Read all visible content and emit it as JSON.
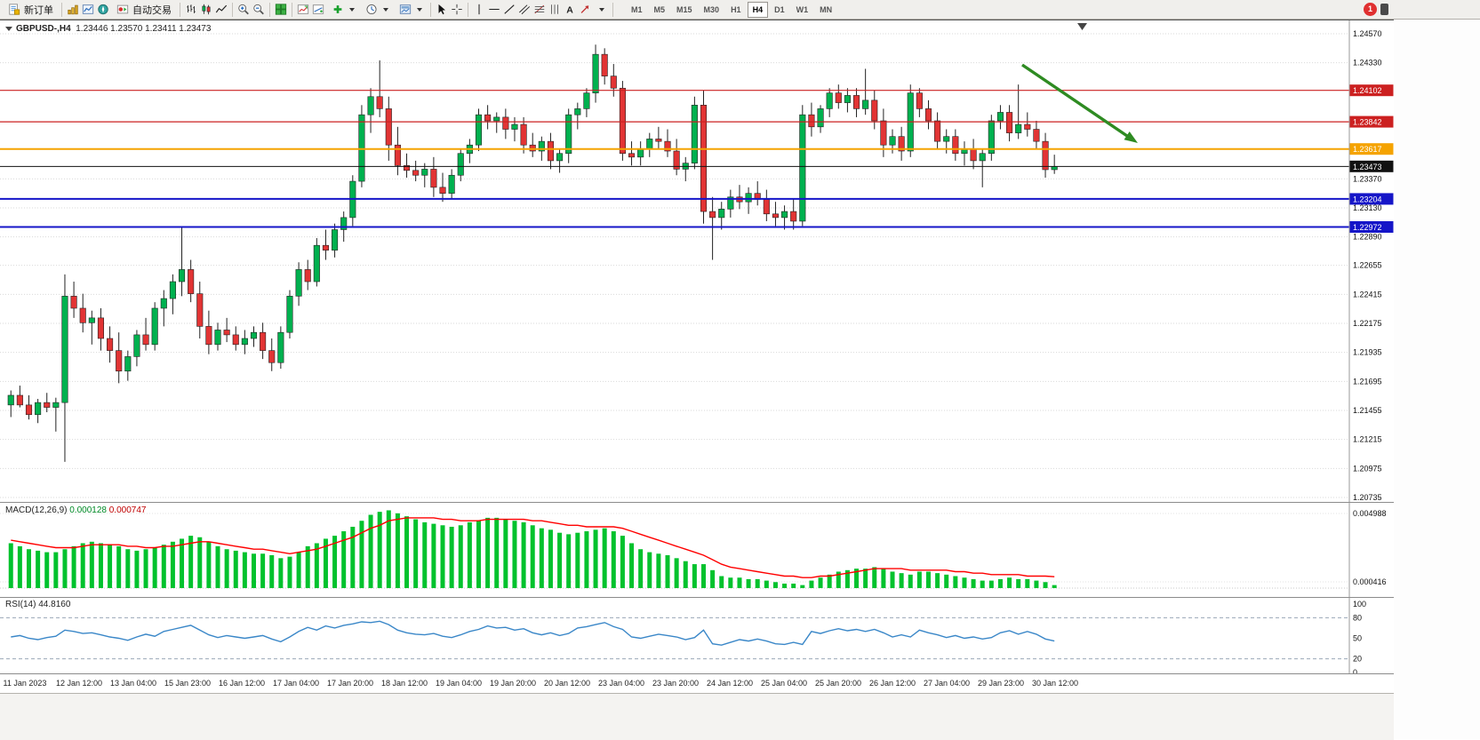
{
  "toolbar": {
    "new_order_label": "新订单",
    "autotrading_label": "自动交易",
    "timeframes": [
      "M1",
      "M5",
      "M15",
      "M30",
      "H1",
      "H4",
      "D1",
      "W1",
      "MN"
    ],
    "active_timeframe": "H4",
    "notification_count": "1"
  },
  "icons": {
    "text_glyph": "A"
  },
  "chart": {
    "header": {
      "symbol": "GBPUSD-,H4",
      "ohlc": "1.23446 1.23570 1.23411 1.23473"
    },
    "colors": {
      "up": "#00b14f",
      "down": "#e23434",
      "wick": "#222222",
      "arrow": "#2e8b22",
      "macd_hist": "#00c22d",
      "macd_signal": "#ff0000",
      "rsi_line": "#3a87c8"
    },
    "price_axis": {
      "ticks": [
        "1.24570",
        "1.24330",
        "1.23370",
        "1.23130",
        "1.22890",
        "1.22655",
        "1.22415",
        "1.22175",
        "1.21935",
        "1.21695",
        "1.21455",
        "1.21215",
        "1.20975",
        "1.20735"
      ]
    },
    "levels": [
      {
        "price": "1.24102",
        "color": "#cc2020",
        "width": 1.2
      },
      {
        "price": "1.23842",
        "color": "#cc2020",
        "width": 1.2
      },
      {
        "price": "1.23617",
        "color": "#f5a300",
        "width": 2
      },
      {
        "price": "1.23473",
        "color": "#111111",
        "width": 1
      },
      {
        "price": "1.23204",
        "color": "#1515c8",
        "width": 2
      },
      {
        "price": "1.22972",
        "color": "#1515c8",
        "width": 2
      }
    ],
    "time_axis": [
      "11 Jan 2023",
      "12 Jan 12:00",
      "13 Jan 04:00",
      "15 Jan 23:00",
      "16 Jan 12:00",
      "17 Jan 04:00",
      "17 Jan 20:00",
      "18 Jan 12:00",
      "19 Jan 04:00",
      "19 Jan 20:00",
      "20 Jan 12:00",
      "23 Jan 04:00",
      "23 Jan 20:00",
      "24 Jan 12:00",
      "25 Jan 04:00",
      "25 Jan 20:00",
      "26 Jan 12:00",
      "27 Jan 04:00",
      "29 Jan 23:00",
      "30 Jan 12:00"
    ]
  },
  "macd": {
    "label": "MACD(12,26,9)",
    "value_main": "0.000128",
    "value_signal": "0.000747",
    "scale_labels": [
      "0.004988",
      "0.000416"
    ]
  },
  "rsi": {
    "label": "RSI(14)",
    "value": "44.8160",
    "scale_labels": [
      "100",
      "80",
      "50",
      "20",
      "0"
    ],
    "scale_values": [
      100,
      80,
      50,
      20,
      0
    ],
    "level_values": [
      80,
      20
    ]
  },
  "chart_data": {
    "type": "candlestick",
    "symbol": "GBPUSD-",
    "timeframe": "H4",
    "candles": [
      [
        1.215,
        1.2162,
        1.214,
        1.2158
      ],
      [
        1.2158,
        1.2166,
        1.2148,
        1.215
      ],
      [
        1.215,
        1.2158,
        1.2138,
        1.2142
      ],
      [
        1.2142,
        1.2155,
        1.2135,
        1.2152
      ],
      [
        1.2152,
        1.216,
        1.2144,
        1.2148
      ],
      [
        1.2148,
        1.2156,
        1.2128,
        1.2152
      ],
      [
        1.2152,
        1.2258,
        1.2103,
        1.224
      ],
      [
        1.224,
        1.2252,
        1.2222,
        1.223
      ],
      [
        1.223,
        1.2242,
        1.221,
        1.2218
      ],
      [
        1.2218,
        1.2228,
        1.22,
        1.2222
      ],
      [
        1.2222,
        1.223,
        1.2195,
        1.2205
      ],
      [
        1.2205,
        1.2215,
        1.2185,
        1.2195
      ],
      [
        1.2195,
        1.221,
        1.2168,
        1.2178
      ],
      [
        1.2178,
        1.2195,
        1.217,
        1.219
      ],
      [
        1.219,
        1.2212,
        1.2182,
        1.2208
      ],
      [
        1.2208,
        1.2222,
        1.2195,
        1.22
      ],
      [
        1.22,
        1.2235,
        1.2195,
        1.223
      ],
      [
        1.223,
        1.2245,
        1.2215,
        1.2238
      ],
      [
        1.2238,
        1.2258,
        1.2225,
        1.2252
      ],
      [
        1.2252,
        1.2297,
        1.224,
        1.2262
      ],
      [
        1.2262,
        1.227,
        1.2235,
        1.2242
      ],
      [
        1.2242,
        1.2252,
        1.2205,
        1.2215
      ],
      [
        1.2215,
        1.2228,
        1.2192,
        1.22
      ],
      [
        1.22,
        1.2218,
        1.2195,
        1.2212
      ],
      [
        1.2212,
        1.2222,
        1.2202,
        1.2208
      ],
      [
        1.2208,
        1.2215,
        1.2195,
        1.22
      ],
      [
        1.22,
        1.2212,
        1.2192,
        1.2205
      ],
      [
        1.2205,
        1.2215,
        1.2198,
        1.221
      ],
      [
        1.221,
        1.2218,
        1.2188,
        1.2195
      ],
      [
        1.2195,
        1.2205,
        1.2178,
        1.2185
      ],
      [
        1.2185,
        1.2215,
        1.218,
        1.221
      ],
      [
        1.221,
        1.2245,
        1.2205,
        1.224
      ],
      [
        1.224,
        1.2268,
        1.2232,
        1.2262
      ],
      [
        1.2262,
        1.227,
        1.2245,
        1.2252
      ],
      [
        1.2252,
        1.2288,
        1.2248,
        1.2282
      ],
      [
        1.2282,
        1.2295,
        1.227,
        1.2278
      ],
      [
        1.2278,
        1.23,
        1.2272,
        1.2295
      ],
      [
        1.2295,
        1.231,
        1.2285,
        1.2305
      ],
      [
        1.2305,
        1.234,
        1.2298,
        1.2335
      ],
      [
        1.2335,
        1.2398,
        1.233,
        1.239
      ],
      [
        1.239,
        1.2412,
        1.2375,
        1.2405
      ],
      [
        1.2405,
        1.2435,
        1.2388,
        1.2395
      ],
      [
        1.2395,
        1.2405,
        1.2352,
        1.2365
      ],
      [
        1.2365,
        1.238,
        1.234,
        1.2348
      ],
      [
        1.2348,
        1.2358,
        1.2338,
        1.2344
      ],
      [
        1.2344,
        1.2352,
        1.2335,
        1.234
      ],
      [
        1.234,
        1.235,
        1.233,
        1.2345
      ],
      [
        1.2345,
        1.2355,
        1.2322,
        1.233
      ],
      [
        1.233,
        1.2342,
        1.2318,
        1.2325
      ],
      [
        1.2325,
        1.2345,
        1.232,
        1.234
      ],
      [
        1.234,
        1.2362,
        1.2335,
        1.2358
      ],
      [
        1.2358,
        1.237,
        1.235,
        1.2365
      ],
      [
        1.2365,
        1.2395,
        1.236,
        1.239
      ],
      [
        1.239,
        1.2398,
        1.2378,
        1.2385
      ],
      [
        1.2385,
        1.2392,
        1.2375,
        1.2388
      ],
      [
        1.2388,
        1.2395,
        1.237,
        1.2378
      ],
      [
        1.2378,
        1.2388,
        1.2368,
        1.2382
      ],
      [
        1.2382,
        1.2388,
        1.2358,
        1.2365
      ],
      [
        1.2365,
        1.2375,
        1.2355,
        1.236
      ],
      [
        1.236,
        1.2372,
        1.2352,
        1.2368
      ],
      [
        1.2368,
        1.2375,
        1.2345,
        1.2352
      ],
      [
        1.2352,
        1.2362,
        1.2342,
        1.2358
      ],
      [
        1.2358,
        1.2395,
        1.235,
        1.239
      ],
      [
        1.239,
        1.24,
        1.2378,
        1.2395
      ],
      [
        1.2395,
        1.2412,
        1.2388,
        1.2408
      ],
      [
        1.2408,
        1.2448,
        1.24,
        1.244
      ],
      [
        1.244,
        1.2445,
        1.2415,
        1.2422
      ],
      [
        1.2422,
        1.2432,
        1.2405,
        1.2412
      ],
      [
        1.2412,
        1.2418,
        1.2352,
        1.2358
      ],
      [
        1.2358,
        1.2368,
        1.2348,
        1.2355
      ],
      [
        1.2355,
        1.2368,
        1.2348,
        1.2362
      ],
      [
        1.2362,
        1.2375,
        1.2355,
        1.237
      ],
      [
        1.237,
        1.238,
        1.2362,
        1.2368
      ],
      [
        1.2368,
        1.2378,
        1.2355,
        1.236
      ],
      [
        1.236,
        1.237,
        1.234,
        1.2345
      ],
      [
        1.2345,
        1.2355,
        1.2335,
        1.235
      ],
      [
        1.235,
        1.2405,
        1.2345,
        1.2398
      ],
      [
        1.2398,
        1.241,
        1.23,
        1.231
      ],
      [
        1.231,
        1.2322,
        1.227,
        1.2305
      ],
      [
        1.2305,
        1.2318,
        1.2295,
        1.2312
      ],
      [
        1.2312,
        1.2328,
        1.2305,
        1.2322
      ],
      [
        1.2322,
        1.2332,
        1.2312,
        1.2318
      ],
      [
        1.2318,
        1.233,
        1.2308,
        1.2325
      ],
      [
        1.2325,
        1.2335,
        1.2315,
        1.232
      ],
      [
        1.232,
        1.2328,
        1.2302,
        1.2308
      ],
      [
        1.2308,
        1.2318,
        1.2298,
        1.2305
      ],
      [
        1.2305,
        1.2315,
        1.2295,
        1.231
      ],
      [
        1.231,
        1.232,
        1.2295,
        1.2302
      ],
      [
        1.2302,
        1.2398,
        1.2298,
        1.239
      ],
      [
        1.239,
        1.24,
        1.2372,
        1.238
      ],
      [
        1.238,
        1.2398,
        1.2375,
        1.2395
      ],
      [
        1.2395,
        1.2412,
        1.2388,
        1.2408
      ],
      [
        1.2408,
        1.2415,
        1.2395,
        1.24
      ],
      [
        1.24,
        1.2412,
        1.2392,
        1.2406
      ],
      [
        1.2406,
        1.2412,
        1.2388,
        1.2395
      ],
      [
        1.2395,
        1.2428,
        1.239,
        1.2402
      ],
      [
        1.2402,
        1.241,
        1.2378,
        1.2385
      ],
      [
        1.2385,
        1.2395,
        1.2355,
        1.2365
      ],
      [
        1.2365,
        1.2378,
        1.2358,
        1.2372
      ],
      [
        1.2372,
        1.238,
        1.2352,
        1.236
      ],
      [
        1.236,
        1.2415,
        1.2355,
        1.2408
      ],
      [
        1.2408,
        1.2412,
        1.2388,
        1.2395
      ],
      [
        1.2395,
        1.2402,
        1.2378,
        1.2385
      ],
      [
        1.2385,
        1.2392,
        1.2362,
        1.2368
      ],
      [
        1.2368,
        1.2378,
        1.2358,
        1.2372
      ],
      [
        1.2372,
        1.2378,
        1.2352,
        1.2358
      ],
      [
        1.2358,
        1.2368,
        1.2348,
        1.2362
      ],
      [
        1.2362,
        1.237,
        1.2345,
        1.2352
      ],
      [
        1.2352,
        1.2362,
        1.233,
        1.2358
      ],
      [
        1.2358,
        1.239,
        1.2352,
        1.2385
      ],
      [
        1.2385,
        1.2398,
        1.2378,
        1.2392
      ],
      [
        1.2392,
        1.2398,
        1.2368,
        1.2375
      ],
      [
        1.2375,
        1.2415,
        1.237,
        1.2382
      ],
      [
        1.2382,
        1.2392,
        1.2372,
        1.2378
      ],
      [
        1.2378,
        1.2385,
        1.2362,
        1.2368
      ],
      [
        1.2368,
        1.2375,
        1.2338,
        1.23446
      ],
      [
        1.23446,
        1.2357,
        1.23411,
        1.23473
      ]
    ],
    "macd_histogram": [
      0.003,
      0.0028,
      0.0026,
      0.0025,
      0.0024,
      0.0024,
      0.0026,
      0.0028,
      0.003,
      0.0031,
      0.003,
      0.0029,
      0.0028,
      0.0026,
      0.0025,
      0.0026,
      0.0027,
      0.0029,
      0.0031,
      0.0033,
      0.0035,
      0.0034,
      0.0031,
      0.0028,
      0.0026,
      0.0025,
      0.0024,
      0.0023,
      0.0023,
      0.0022,
      0.002,
      0.0021,
      0.0024,
      0.0028,
      0.003,
      0.0033,
      0.0035,
      0.0038,
      0.0041,
      0.0045,
      0.0049,
      0.0051,
      0.0052,
      0.005,
      0.0048,
      0.0046,
      0.0044,
      0.0043,
      0.0042,
      0.0041,
      0.0042,
      0.0044,
      0.0045,
      0.0047,
      0.0047,
      0.0046,
      0.0045,
      0.0044,
      0.0042,
      0.004,
      0.0039,
      0.0037,
      0.0036,
      0.0037,
      0.0038,
      0.0039,
      0.004,
      0.0038,
      0.0035,
      0.003,
      0.0026,
      0.0024,
      0.0023,
      0.0022,
      0.002,
      0.0018,
      0.0016,
      0.0016,
      0.0012,
      0.0008,
      0.0007,
      0.0007,
      0.0006,
      0.0006,
      0.0005,
      0.0004,
      0.0003,
      0.0003,
      0.0002,
      0.0005,
      0.0007,
      0.0009,
      0.0011,
      0.0012,
      0.0013,
      0.0013,
      0.0014,
      0.0013,
      0.0011,
      0.001,
      0.0009,
      0.0011,
      0.0011,
      0.001,
      0.0009,
      0.0008,
      0.0007,
      0.0006,
      0.0005,
      0.0005,
      0.0006,
      0.0007,
      0.0006,
      0.0006,
      0.0005,
      0.0004,
      0.0002,
      0.00013
    ],
    "macd_signal": [
      0.0032,
      0.0031,
      0.003,
      0.0029,
      0.0028,
      0.0027,
      0.0027,
      0.0027,
      0.0028,
      0.0029,
      0.0029,
      0.0029,
      0.0029,
      0.0028,
      0.0028,
      0.0027,
      0.0027,
      0.0028,
      0.0028,
      0.0029,
      0.003,
      0.0031,
      0.0031,
      0.003,
      0.0029,
      0.0028,
      0.0027,
      0.0026,
      0.0026,
      0.0025,
      0.0024,
      0.0023,
      0.0024,
      0.0025,
      0.0026,
      0.0028,
      0.003,
      0.0032,
      0.0034,
      0.0037,
      0.004,
      0.0042,
      0.0045,
      0.0046,
      0.0047,
      0.0047,
      0.0047,
      0.0047,
      0.0046,
      0.0046,
      0.0045,
      0.0045,
      0.0045,
      0.0046,
      0.0046,
      0.0046,
      0.0046,
      0.0046,
      0.0045,
      0.0045,
      0.0044,
      0.0043,
      0.0042,
      0.0042,
      0.0041,
      0.0041,
      0.0041,
      0.0041,
      0.004,
      0.0038,
      0.0036,
      0.0034,
      0.0032,
      0.003,
      0.0028,
      0.0026,
      0.0024,
      0.0022,
      0.0019,
      0.0016,
      0.0014,
      0.0013,
      0.0012,
      0.0011,
      0.001,
      0.0009,
      0.0008,
      0.0008,
      0.0007,
      0.0007,
      0.0008,
      0.0008,
      0.0009,
      0.001,
      0.0011,
      0.0012,
      0.0013,
      0.0013,
      0.0013,
      0.0013,
      0.0012,
      0.0012,
      0.0012,
      0.0012,
      0.0012,
      0.0011,
      0.0011,
      0.001,
      0.001,
      0.0009,
      0.0009,
      0.0009,
      0.0009,
      0.0008,
      0.0008,
      0.0008,
      0.00076,
      0.00075
    ],
    "rsi": [
      52,
      54,
      50,
      48,
      51,
      53,
      62,
      60,
      57,
      58,
      55,
      52,
      50,
      47,
      52,
      56,
      53,
      60,
      63,
      66,
      69,
      62,
      55,
      51,
      54,
      52,
      50,
      52,
      54,
      49,
      45,
      52,
      60,
      66,
      62,
      68,
      65,
      69,
      71,
      74,
      73,
      75,
      70,
      62,
      58,
      56,
      55,
      57,
      53,
      51,
      55,
      60,
      63,
      68,
      65,
      66,
      62,
      64,
      58,
      55,
      58,
      54,
      57,
      65,
      67,
      70,
      73,
      67,
      63,
      52,
      50,
      53,
      56,
      54,
      52,
      48,
      51,
      62,
      42,
      40,
      44,
      48,
      46,
      49,
      46,
      42,
      41,
      44,
      41,
      60,
      57,
      61,
      64,
      61,
      63,
      60,
      63,
      58,
      52,
      55,
      52,
      62,
      58,
      55,
      51,
      54,
      50,
      52,
      49,
      51,
      58,
      61,
      56,
      60,
      56,
      49,
      46,
      44.8
    ]
  }
}
